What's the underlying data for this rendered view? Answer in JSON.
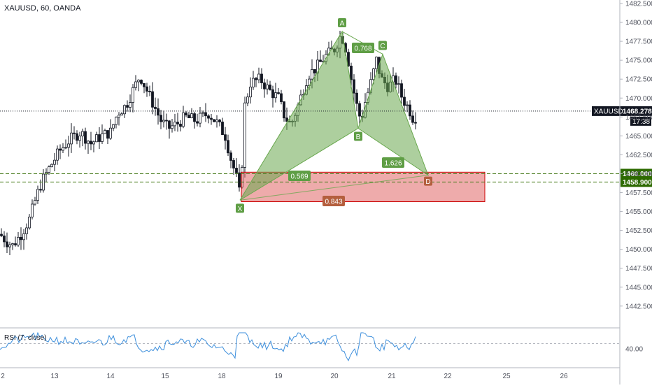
{
  "chart_title": "XAUUSD, 60, OANDA",
  "symbol": "XAUUSD",
  "colors": {
    "up": "#131722",
    "down": "#131722",
    "pattern_fill": "#6aa84f",
    "pattern_label_bg": "#5f9e45",
    "zone_fill": "#e06666",
    "zone_stroke": "#cc0000",
    "dashed_level": "#4a7d1f",
    "price_tag_bg": "#131722",
    "level_tag_bg": "#2d6a00",
    "rsi_line": "#3d8fdc"
  },
  "price_scale": {
    "ticks": [
      "1482.500",
      "1480.000",
      "1477.500",
      "1475.000",
      "1472.500",
      "1470.000",
      "1467.500",
      "1465.000",
      "1462.500",
      "1460.000",
      "1457.500",
      "1455.000",
      "1452.500",
      "1450.000",
      "1447.500",
      "1445.000",
      "1442.500"
    ],
    "current_price": "1468.278",
    "countdown": "17:38",
    "levels": [
      "1460.000",
      "1458.900"
    ]
  },
  "time_scale": {
    "ticks": [
      "2",
      "13",
      "14",
      "15",
      "18",
      "19",
      "20",
      "21",
      "22",
      "25",
      "26"
    ]
  },
  "pattern": {
    "points": [
      {
        "label": "X",
        "price": 1456.5
      },
      {
        "label": "A",
        "price": 1478.8
      },
      {
        "label": "B",
        "price": 1466.0
      },
      {
        "label": "C",
        "price": 1475.8
      },
      {
        "label": "D",
        "price": 1459.8
      }
    ],
    "ratios": [
      "0.768",
      "0.569",
      "1.626",
      "0.843"
    ]
  },
  "rsi": {
    "title": "RSI (7, close)",
    "tick": "40.00"
  }
}
